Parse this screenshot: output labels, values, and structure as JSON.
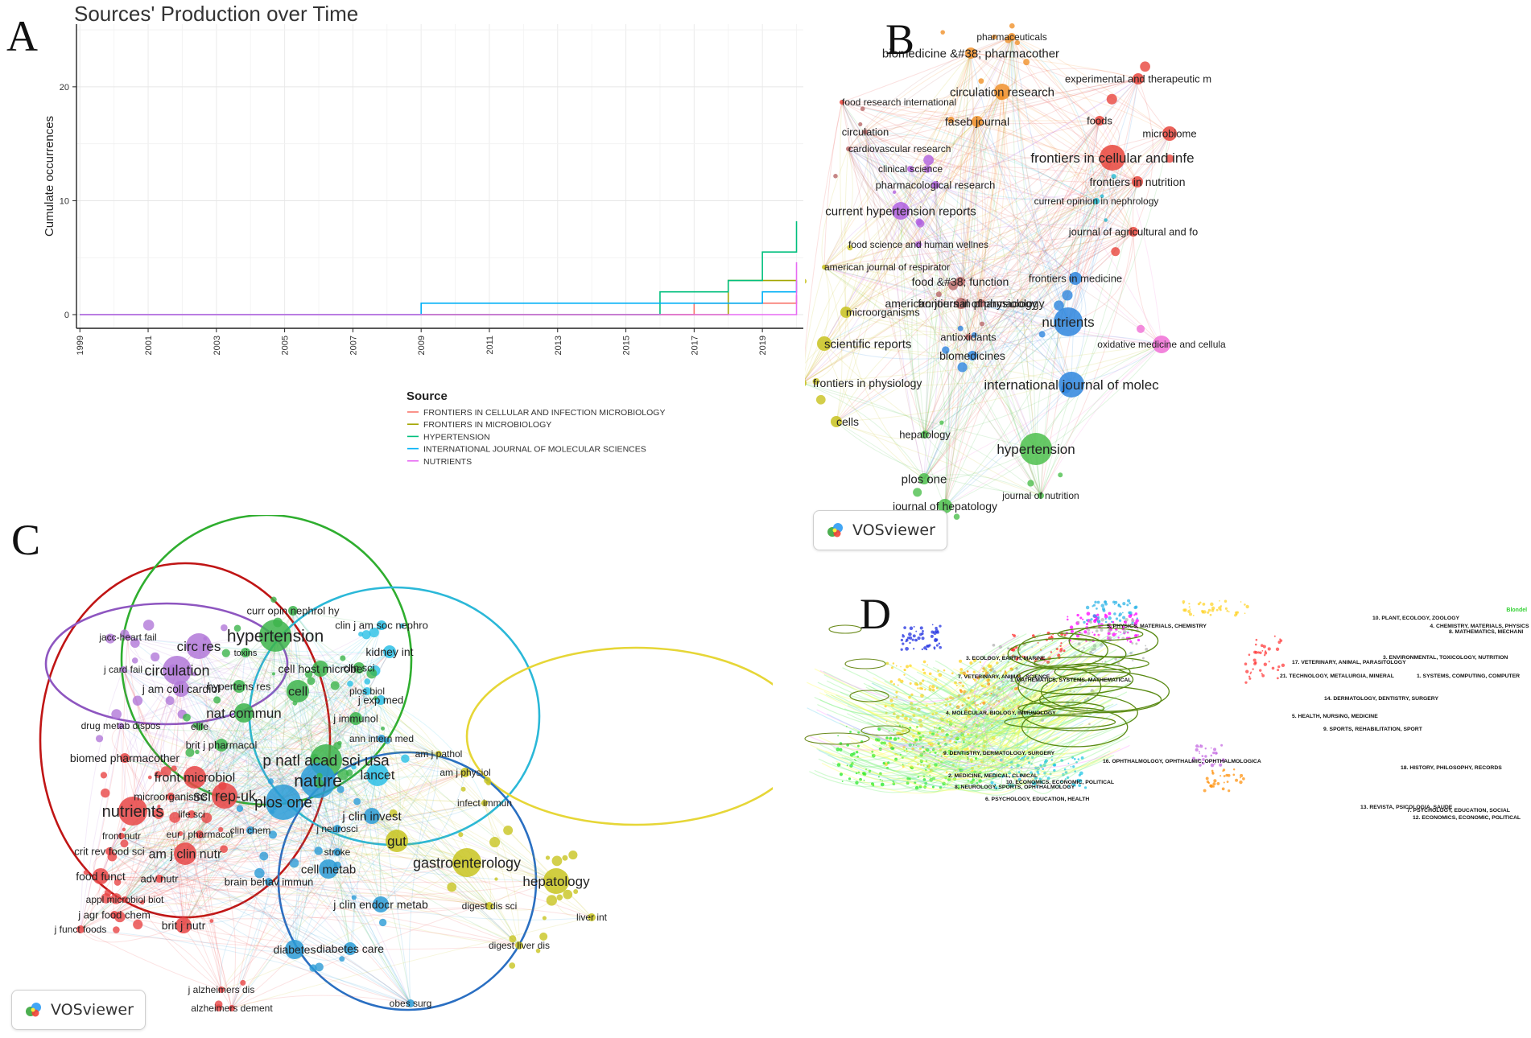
{
  "panels": {
    "A": {
      "letter": "A"
    },
    "B": {
      "letter": "B",
      "badge": "VOSviewer"
    },
    "C": {
      "letter": "C",
      "badge": "VOSviewer"
    },
    "D": {
      "letter": "D"
    }
  },
  "chart_data": [
    {
      "type": "line",
      "panel": "A",
      "title": "Sources' Production over Time",
      "xlabel": "",
      "ylabel": "Cumulate occurrences",
      "x": [
        1999,
        2000,
        2001,
        2002,
        2003,
        2004,
        2005,
        2006,
        2007,
        2008,
        2009,
        2010,
        2011,
        2012,
        2013,
        2014,
        2015,
        2016,
        2017,
        2018,
        2019,
        2020
      ],
      "xticks": [
        "1999",
        "2001",
        "2003",
        "2005",
        "2007",
        "2009",
        "2011",
        "2013",
        "2015",
        "2017",
        "2019"
      ],
      "yticks": [
        0,
        10,
        20
      ],
      "xlim": [
        1998.9,
        2020.2
      ],
      "ylim": [
        -1.2,
        25.5
      ],
      "grid": true,
      "legend_title": "Source",
      "legend_position": "bottom",
      "series": [
        {
          "name": "FRONTIERS IN CELLULAR AND INFECTION MICROBIOLOGY",
          "color": "#F8766D",
          "values": [
            0,
            0,
            0,
            0,
            0,
            0,
            0,
            0,
            0,
            0,
            0,
            0,
            0,
            0,
            0,
            0,
            0,
            0,
            1,
            1,
            1,
            1.7
          ]
        },
        {
          "name": "FRONTIERS IN MICROBIOLOGY",
          "color": "#A3A500",
          "values": [
            0,
            0,
            0,
            0,
            0,
            0,
            0,
            0,
            0,
            0,
            0,
            0,
            0,
            0,
            0,
            0,
            0,
            0,
            0,
            3,
            3,
            3
          ]
        },
        {
          "name": "HYPERTENSION",
          "color": "#00BF7D",
          "values": [
            0,
            0,
            0,
            0,
            0,
            0,
            0,
            0,
            0,
            0,
            0,
            0,
            0,
            0,
            0,
            0,
            0,
            2,
            2,
            3,
            5.5,
            8.2
          ]
        },
        {
          "name": "INTERNATIONAL JOURNAL OF MOLECULAR SCIENCES",
          "color": "#00B0F6",
          "values": [
            0,
            0,
            0,
            0,
            0,
            0,
            0,
            0,
            0,
            0,
            1,
            1,
            1,
            1,
            1,
            1,
            1,
            1,
            1,
            1,
            2,
            3
          ]
        },
        {
          "name": "NUTRIENTS",
          "color": "#E76BF3",
          "values": [
            0,
            0,
            0,
            0,
            0,
            0,
            0,
            0,
            0,
            0,
            0,
            0,
            0,
            0,
            0,
            0,
            0,
            0,
            0,
            0,
            0,
            4.6
          ]
        }
      ]
    },
    {
      "type": "network",
      "panel": "B",
      "title": "",
      "labels": [
        "pharmaceuticals",
        "biomedicine &#38; pharmacother",
        "experimental and therapeutic m",
        "food research international",
        "circulation research",
        "faseb journal",
        "foods",
        "microbiome",
        "circulation",
        "cardiovascular research",
        "frontiers in cellular and infe",
        "clinical science",
        "frontiers in nutrition",
        "pharmacological research",
        "current opinion in nephrology",
        "current hypertension reports",
        "journal of agricultural and fo",
        "food science and human wellnes",
        "american journal of respirator",
        "frontiers in medicine",
        "food &#38; function",
        "american journal of physiology",
        "frontiers in pharmacology",
        "microorganisms",
        "nutrients",
        "scientific reports",
        "antioxidants",
        "oxidative medicine and cellula",
        "biomedicines",
        "frontiers in physiology",
        "international journal of molec",
        "cells",
        "hepatology",
        "hypertension",
        "plos one",
        "journal of nutrition",
        "journal of hepatology"
      ]
    },
    {
      "type": "network",
      "panel": "C",
      "title": "",
      "labels": [
        "curr opin nephrol hy",
        "clin j am soc nephro",
        "hypertension",
        "jacc-heart fail",
        "circ res",
        "toxins",
        "kidney int",
        "j card fail",
        "circulation",
        "cell host microbe",
        "clin sci",
        "plos biol",
        "j am coll cardiol",
        "hypertens res",
        "cell",
        "j exp med",
        "nat commun",
        "drug metab dispos",
        "j immunol",
        "ann intern med",
        "elife",
        "brit j pharmacol",
        "am j pathol",
        "biomed pharmacother",
        "p natl acad sci usa",
        "front microbiol",
        "nature",
        "am j physiol",
        "lancet",
        "microorganisms",
        "sci rep-uk",
        "infect immun",
        "nutrients",
        "plos one",
        "life sci",
        "j clin invest",
        "front nutr",
        "eur j pharmacol",
        "clin chem",
        "j neurosci",
        "gut",
        "stroke",
        "crit rev food sci",
        "am j clin nutr",
        "cell metab",
        "gastroenterology",
        "food funct",
        "adv nutr",
        "brain behav immun",
        "appl microbiol biot",
        "hepatology",
        "digest dis sci",
        "j agr food chem",
        "j clin endocr metab",
        "liver int",
        "j funct foods",
        "brit j nutr",
        "diabetes",
        "diabetes care",
        "digest liver dis",
        "j alzheimers dis",
        "alzheimers dement",
        "obes surg"
      ]
    },
    {
      "type": "network",
      "panel": "D",
      "title": "",
      "labels": [
        "5. PHYSICS, MATERIALS, CHEMISTRY",
        "3. ECOLOGY, EARTH, MARINE",
        "7. VETERINARY, ANIMAL, SCIENCE",
        "1. MATHEMATICS, SYSTEMS, MATHEMATICAL",
        "4. MOLECULAR, BIOLOGY, IMMUNOLOGY",
        "9. DENTISTRY, DERMATOLOGY, SURGERY",
        "2. MEDICINE, MEDICAL, CLINICAL",
        "8. NEUROLOGY, SPORTS, OPHTHALMOLOGY",
        "10. ECONOMICS, ECONOMIC, POLITICAL",
        "6. PSYCHOLOGY, EDUCATION, HEALTH",
        "16. OPHTHALMOLOGY, OPHTHALMIC, OPHTHALMOLOGICA",
        "10. PLANT, ECOLOGY, ZOOLOGY",
        "3. ENVIRONMENTAL, TOXICOLOGY, NUTRITION",
        "4. CHEMISTRY, MATERIALS, PHYSICS",
        "8. MATHEMATICS, MECHANI",
        "17. VETERINARY, ANIMAL, PARASITOLOGY",
        "1. SYSTEMS, COMPUTING, COMPUTER",
        "21. TECHNOLOGY, METALURGIA, MINERAL",
        "14. DERMATOLOGY, DENTISTRY, SURGERY",
        "5. HEALTH, NURSING, MEDICINE",
        "9. SPORTS, REHABILITATION, SPORT",
        "18. HISTORY, PHILOSOPHY, RECORDS",
        "13. REVISTA, PSICOLOGIA, SAUDE",
        "7. PSYCHOLOGY, EDUCATION, SOCIAL",
        "12. ECONOMICS, ECONOMIC, POLITICAL",
        "Blondel"
      ]
    }
  ]
}
